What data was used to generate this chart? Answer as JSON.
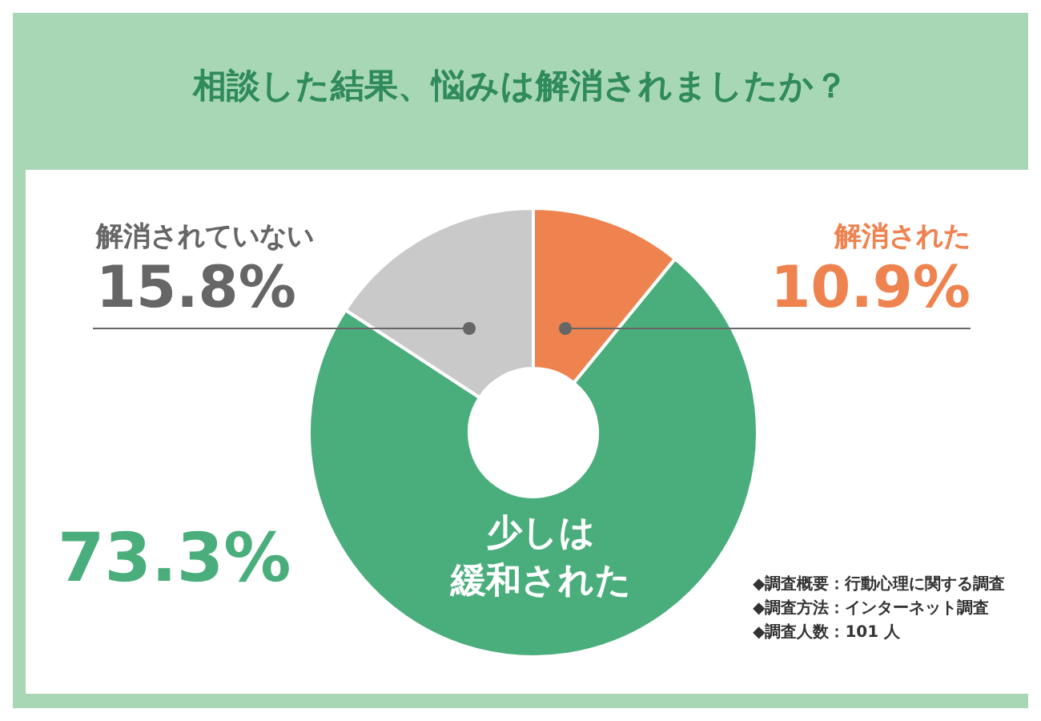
{
  "chart_data": {
    "type": "donut",
    "title": "相談した結果、悩みは解消されましたか？",
    "categories": [
      "解消された",
      "少しは緩和された",
      "解消されていない"
    ],
    "values": [
      10.9,
      73.3,
      15.8
    ],
    "colors": [
      "#ef8350",
      "#4aae7c",
      "#c9c9c9"
    ],
    "value_labels": [
      "10.9%",
      "73.3%",
      "15.8%"
    ],
    "legend": false,
    "annotations": [
      "◆調査概要：行動心理に関する調査",
      "◆調査方法：インターネット調査",
      "◆調査人数：101 人"
    ]
  }
}
